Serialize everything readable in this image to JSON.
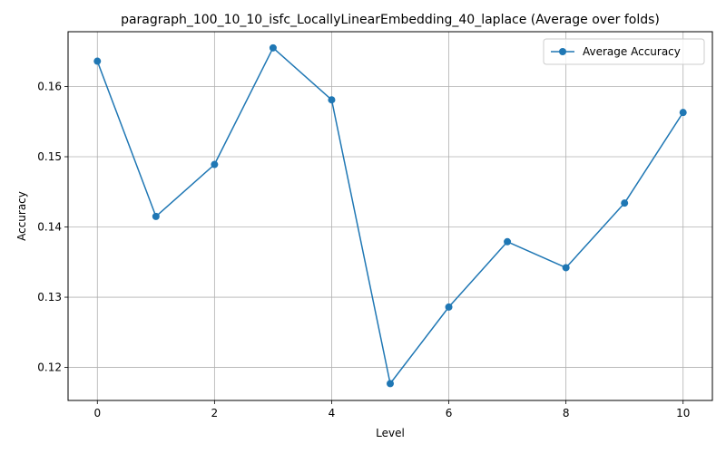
{
  "chart_data": {
    "type": "line",
    "title": "paragraph_100_10_10_isfc_LocallyLinearEmbedding_40_laplace (Average over folds)",
    "xlabel": "Level",
    "ylabel": "Accuracy",
    "xlim": [
      -0.5,
      10.5
    ],
    "ylim": [
      0.1153,
      0.1678
    ],
    "xticks": [
      0,
      2,
      4,
      6,
      8,
      10
    ],
    "yticks": [
      0.12,
      0.13,
      0.14,
      0.15,
      0.16
    ],
    "xtick_labels": [
      "0",
      "2",
      "4",
      "6",
      "8",
      "10"
    ],
    "ytick_labels": [
      "0.12",
      "0.13",
      "0.14",
      "0.15",
      "0.16"
    ],
    "grid": true,
    "legend": {
      "position": "top-right"
    },
    "series": [
      {
        "name": "Average Accuracy",
        "color": "#1f77b4",
        "marker": "circle",
        "x": [
          0,
          1,
          2,
          3,
          4,
          5,
          6,
          7,
          8,
          9,
          10
        ],
        "y": [
          0.1636,
          0.1415,
          0.1489,
          0.1655,
          0.1581,
          0.1177,
          0.1286,
          0.1379,
          0.1342,
          0.1434,
          0.1563
        ]
      }
    ]
  }
}
